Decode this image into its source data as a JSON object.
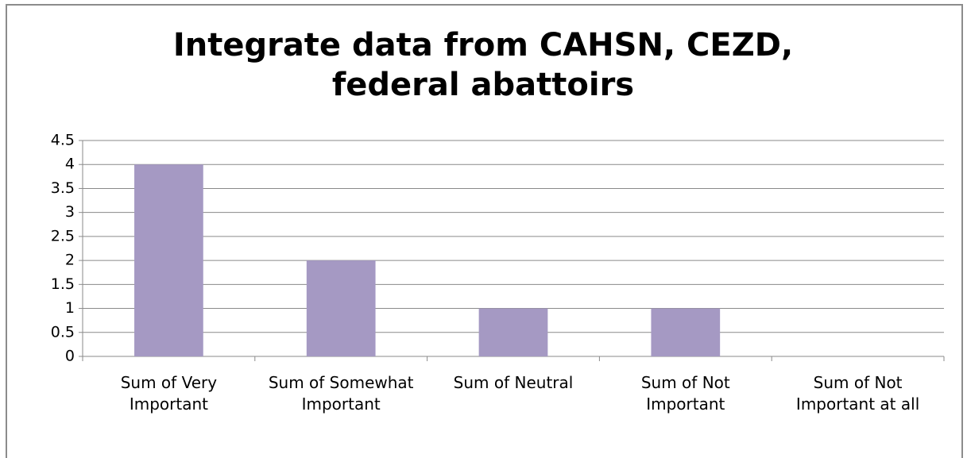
{
  "chart_data": {
    "type": "bar",
    "title": "Integrate data from CAHSN, CEZD, federal abattoirs",
    "categories": [
      "Sum of Very Important",
      "Sum of Somewhat Important",
      "Sum of Neutral",
      "Sum of Not Important",
      "Sum of Not Important at all"
    ],
    "values": [
      4,
      2,
      1,
      1,
      0
    ],
    "color": "#a599c3",
    "ylim": [
      0,
      4.5
    ],
    "yticks": [
      0,
      0.5,
      1,
      1.5,
      2,
      2.5,
      3,
      3.5,
      4,
      4.5
    ],
    "grid": true
  }
}
